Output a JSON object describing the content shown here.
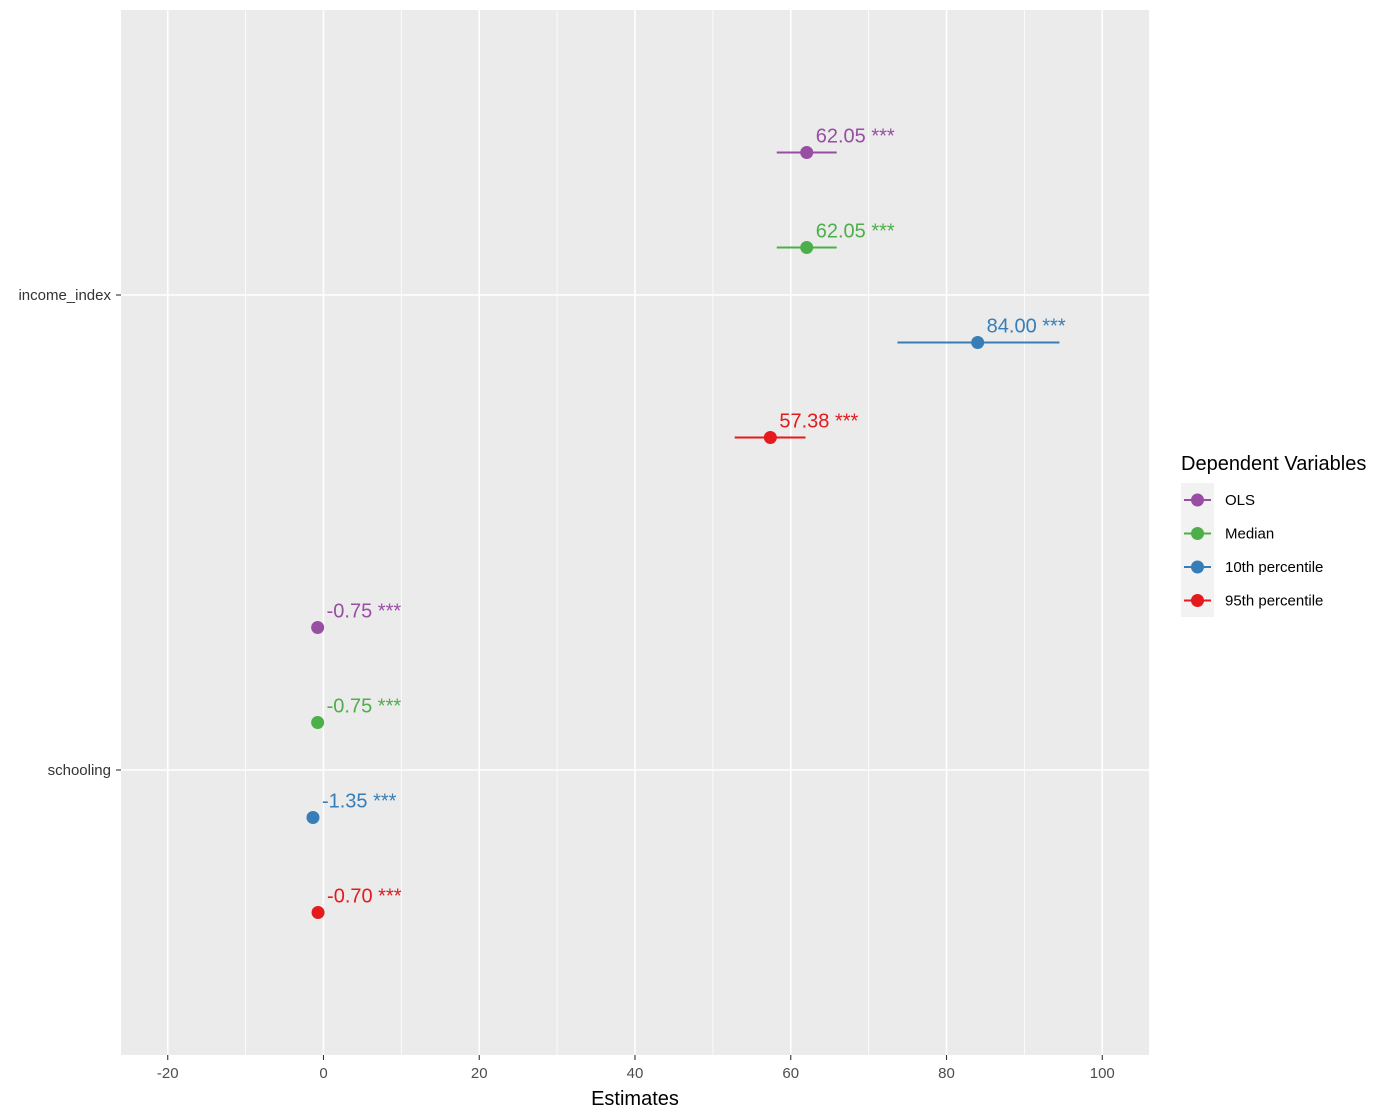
{
  "chart_data": {
    "type": "scatter",
    "subtype": "coefficient-plot",
    "title": "",
    "xlabel": "Estimates",
    "ylabel": "",
    "xlim": [
      -26,
      106
    ],
    "x_ticks": [
      -20,
      0,
      20,
      40,
      60,
      80,
      100
    ],
    "x_tick_labels": [
      "-20",
      "0",
      "20",
      "40",
      "60",
      "80",
      "100"
    ],
    "categories": [
      "income_index",
      "schooling"
    ],
    "grid": true,
    "legend": {
      "title": "Dependent Variables",
      "placement": "right"
    },
    "series": [
      {
        "name": "OLS",
        "color": "#984ea3",
        "estimates": [
          62.05,
          -0.75
        ],
        "ci_low": [
          58.2,
          -0.9
        ],
        "ci_high": [
          65.9,
          -0.6
        ],
        "labels": [
          "62.05 ***",
          "-0.75 ***"
        ]
      },
      {
        "name": "Median",
        "color": "#4daf4a",
        "estimates": [
          62.05,
          -0.75
        ],
        "ci_low": [
          58.2,
          -0.9
        ],
        "ci_high": [
          65.9,
          -0.6
        ],
        "labels": [
          "62.05 ***",
          "-0.75 ***"
        ]
      },
      {
        "name": "10th percentile",
        "color": "#377eb8",
        "estimates": [
          84.0,
          -1.35
        ],
        "ci_low": [
          73.7,
          -1.6
        ],
        "ci_high": [
          94.5,
          -1.1
        ],
        "labels": [
          "84.00 ***",
          "-1.35 ***"
        ]
      },
      {
        "name": "95th percentile",
        "color": "#e41a1c",
        "estimates": [
          57.38,
          -0.7
        ],
        "ci_low": [
          52.8,
          -0.85
        ],
        "ci_high": [
          61.9,
          -0.55
        ],
        "labels": [
          "57.38 ***",
          "-0.70 ***"
        ]
      }
    ]
  }
}
